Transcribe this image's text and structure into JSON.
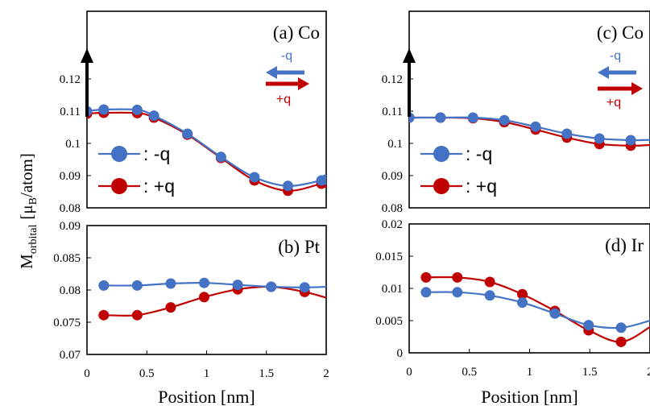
{
  "colors": {
    "minus_q": "#4472C4",
    "plus_q": "#C00000",
    "axis": "#000000"
  },
  "ylabel_main": "M",
  "ylabel_sub": "orbital",
  "ylabel_unit_open": "[μ",
  "ylabel_unit_sub": "B",
  "ylabel_unit_close": "/atom]",
  "annotations": {
    "minus_q": "-q",
    "plus_q": "+q"
  },
  "chart_data": [
    {
      "id": "a",
      "type": "line",
      "title": "(a) Co",
      "xlabel": "",
      "xlim": [
        0,
        2
      ],
      "ylim": [
        0.08,
        0.12
      ],
      "yticks": [
        "0.08",
        "0.09",
        "0.1",
        "0.11",
        "0.12"
      ],
      "xticks": [],
      "legend": {
        "position": "left",
        "entries": [
          ": -q",
          ": +q"
        ]
      },
      "series": [
        {
          "name": ": -q",
          "key": "minus_q",
          "x": [
            0,
            0.14,
            0.42,
            0.56,
            0.84,
            1.12,
            1.4,
            1.68,
            1.96,
            2.0
          ],
          "y": [
            0.11,
            0.1105,
            0.1104,
            0.1086,
            0.103,
            0.0958,
            0.0895,
            0.0868,
            0.0885,
            0.0888
          ],
          "marker_x": [
            0,
            0.14,
            0.42,
            0.56,
            0.84,
            1.12,
            1.4,
            1.68,
            1.96,
            2.0
          ]
        },
        {
          "name": ": +q",
          "key": "plus_q",
          "x": [
            0,
            0.14,
            0.42,
            0.56,
            0.84,
            1.12,
            1.4,
            1.68,
            1.96,
            2.0
          ],
          "y": [
            0.1092,
            0.1095,
            0.1094,
            0.108,
            0.1027,
            0.0955,
            0.0885,
            0.0853,
            0.0875,
            0.0878
          ],
          "marker_x": [
            0,
            0.14,
            0.42,
            0.56,
            0.84,
            1.12,
            1.4,
            1.68,
            1.96,
            2.0
          ]
        }
      ]
    },
    {
      "id": "b",
      "type": "line",
      "title": "(b) Pt",
      "xlabel": "Position [nm]",
      "xlim": [
        0,
        2
      ],
      "ylim": [
        0.07,
        0.09
      ],
      "yticks": [
        "0.07",
        "0.075",
        "0.08",
        "0.085",
        "0.09"
      ],
      "xticks": [
        "0",
        "0.5",
        "1",
        "1.5",
        "2"
      ],
      "series": [
        {
          "name": ": -q",
          "key": "minus_q",
          "x": [
            0.14,
            0.42,
            0.7,
            0.98,
            1.26,
            1.54,
            1.82,
            2.0
          ],
          "y": [
            0.0807,
            0.0807,
            0.081,
            0.0811,
            0.0808,
            0.0805,
            0.0804,
            0.0805
          ],
          "marker_x": [
            0.14,
            0.42,
            0.7,
            0.98,
            1.26,
            1.54,
            1.82
          ]
        },
        {
          "name": ": +q",
          "key": "plus_q",
          "x": [
            0.14,
            0.42,
            0.7,
            0.98,
            1.26,
            1.54,
            1.82,
            2.0
          ],
          "y": [
            0.0761,
            0.0761,
            0.0773,
            0.0789,
            0.0801,
            0.0805,
            0.0797,
            0.0788
          ],
          "marker_x": [
            0.14,
            0.42,
            0.7,
            0.98,
            1.26,
            1.54,
            1.82
          ]
        }
      ]
    },
    {
      "id": "c",
      "type": "line",
      "title": "(c) Co",
      "xlabel": "",
      "xlim": [
        0,
        2
      ],
      "ylim": [
        0.08,
        0.12
      ],
      "yticks": [
        "0.08",
        "0.09",
        "0.1",
        "0.11",
        "0.12"
      ],
      "xticks": [],
      "legend": {
        "position": "left",
        "entries": [
          ": -q",
          ": +q"
        ]
      },
      "series": [
        {
          "name": ": -q",
          "key": "minus_q",
          "x": [
            0,
            0.26,
            0.53,
            0.79,
            1.05,
            1.31,
            1.58,
            1.84,
            2.0
          ],
          "y": [
            0.108,
            0.108,
            0.108,
            0.1072,
            0.1052,
            0.103,
            0.1015,
            0.101,
            0.1011
          ],
          "marker_x": [
            0,
            0.26,
            0.53,
            0.79,
            1.05,
            1.31,
            1.58,
            1.84
          ]
        },
        {
          "name": ": +q",
          "key": "plus_q",
          "x": [
            0,
            0.26,
            0.53,
            0.79,
            1.05,
            1.31,
            1.58,
            1.84,
            2.0
          ],
          "y": [
            0.108,
            0.108,
            0.1078,
            0.1066,
            0.1043,
            0.1018,
            0.0998,
            0.0993,
            0.0995
          ],
          "marker_x": [
            0,
            0.26,
            0.53,
            0.79,
            1.05,
            1.31,
            1.58,
            1.84
          ]
        }
      ]
    },
    {
      "id": "d",
      "type": "line",
      "title": "(d) Ir",
      "xlabel": "Position [nm]",
      "xlim": [
        0,
        2
      ],
      "ylim": [
        0,
        0.02
      ],
      "yticks": [
        "0",
        "0.005",
        "0.01",
        "0.015",
        "0.02"
      ],
      "xticks": [
        "0",
        "0.5",
        "1",
        "1.5",
        "2"
      ],
      "series": [
        {
          "name": ": -q",
          "key": "minus_q",
          "x": [
            0.14,
            0.4,
            0.67,
            0.94,
            1.21,
            1.49,
            1.76,
            2.0
          ],
          "y": [
            0.0094,
            0.0094,
            0.0089,
            0.0078,
            0.0061,
            0.0043,
            0.0039,
            0.005
          ],
          "marker_x": [
            0.14,
            0.4,
            0.67,
            0.94,
            1.21,
            1.49,
            1.76
          ]
        },
        {
          "name": ": +q",
          "key": "plus_q",
          "x": [
            0.14,
            0.4,
            0.67,
            0.94,
            1.21,
            1.49,
            1.76,
            2.0
          ],
          "y": [
            0.0117,
            0.0117,
            0.011,
            0.0091,
            0.0065,
            0.0035,
            0.0017,
            0.004
          ],
          "marker_x": [
            0.14,
            0.4,
            0.67,
            0.94,
            1.21,
            1.49,
            1.76
          ]
        }
      ]
    }
  ]
}
